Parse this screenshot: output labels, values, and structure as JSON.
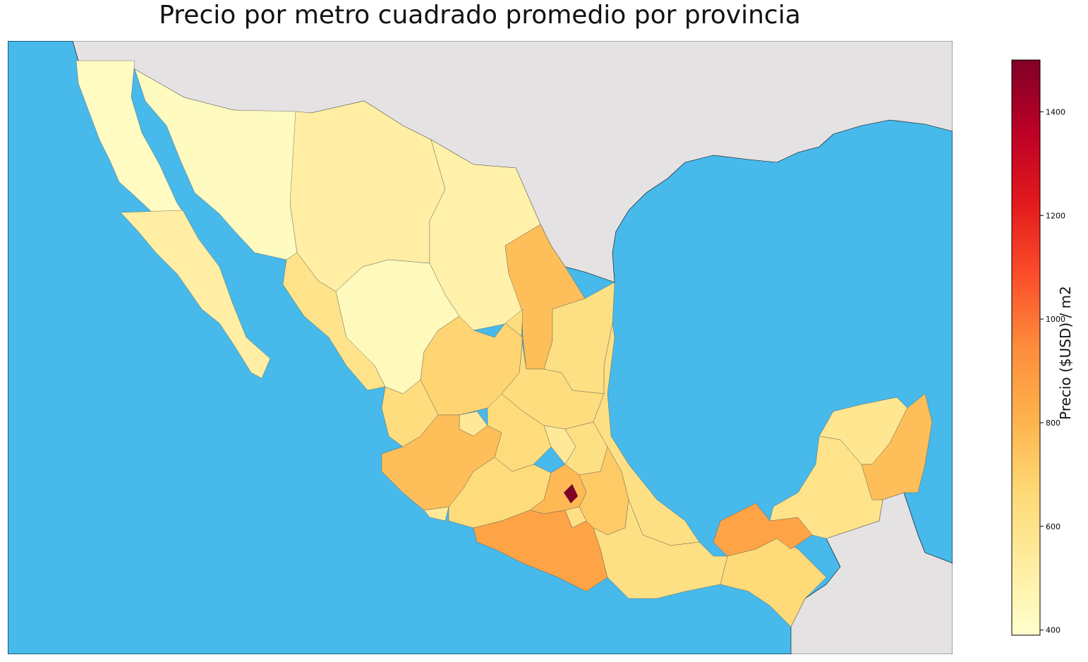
{
  "title": "Precio por metro cuadrado promedio por provincia",
  "colors": {
    "ocean": "#47b9ea",
    "land_outside": "#e4e2e3",
    "scale": [
      "#ffffcc",
      "#ffeda0",
      "#fed976",
      "#feb24c",
      "#fd8d3c",
      "#fc4e2a",
      "#e31a1c",
      "#bd0026",
      "#800026"
    ]
  },
  "colorbar": {
    "label": "Precio ($USD) / m2",
    "min": 390,
    "max": 1500,
    "ticks": [
      "400",
      "600",
      "800",
      "1000",
      "1200",
      "1400"
    ]
  },
  "regions": [
    {
      "id": "baja-california",
      "value": 420
    },
    {
      "id": "baja-california-sur",
      "value": 520
    },
    {
      "id": "sonora",
      "value": 430
    },
    {
      "id": "chihuahua",
      "value": 520
    },
    {
      "id": "coahuila",
      "value": 500
    },
    {
      "id": "nuevo-leon",
      "value": 760
    },
    {
      "id": "tamaulipas",
      "value": 620
    },
    {
      "id": "sinaloa",
      "value": 600
    },
    {
      "id": "durango",
      "value": 440
    },
    {
      "id": "zacatecas",
      "value": 680
    },
    {
      "id": "san-luis-potosi",
      "value": 640
    },
    {
      "id": "nayarit",
      "value": 640
    },
    {
      "id": "aguascalientes",
      "value": 560
    },
    {
      "id": "jalisco",
      "value": 760
    },
    {
      "id": "guanajuato",
      "value": 650
    },
    {
      "id": "queretaro",
      "value": 560
    },
    {
      "id": "hidalgo",
      "value": 620
    },
    {
      "id": "colima",
      "value": 560
    },
    {
      "id": "michoacan",
      "value": 650
    },
    {
      "id": "estado-de-mexico",
      "value": 780
    },
    {
      "id": "ciudad-de-mexico",
      "value": 1500
    },
    {
      "id": "morelos",
      "value": 620
    },
    {
      "id": "tlaxcala",
      "value": 500
    },
    {
      "id": "puebla",
      "value": 720
    },
    {
      "id": "veracruz",
      "value": 620
    },
    {
      "id": "guerrero",
      "value": 860
    },
    {
      "id": "oaxaca",
      "value": 620
    },
    {
      "id": "chiapas",
      "value": 660
    },
    {
      "id": "tabasco",
      "value": 860
    },
    {
      "id": "campeche",
      "value": 600
    },
    {
      "id": "yucatan",
      "value": 580
    },
    {
      "id": "quintana-roo",
      "value": 760
    }
  ]
}
